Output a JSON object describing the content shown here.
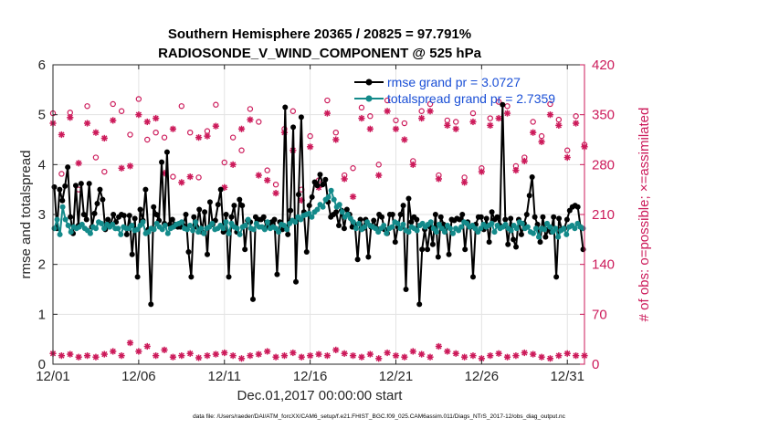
{
  "chart_data": {
    "type": "line",
    "title_line1": "Southern Hemisphere 20365 / 20825 = 97.791%",
    "title_line2": "RADIOSONDE_V_WIND_COMPONENT @ 525 hPa",
    "xlabel": "Dec.01,2017 00:00:00 start",
    "ylabel_left": "rmse and totalspread",
    "ylabel_right": "# of obs: o=possible; ×=assimilated",
    "footnote": "data file: /Users/raeder/DAI/ATM_forcXX/CAM6_setup/f.e21.FHIST_BGC.f09_025.CAM6assim.011/Diags_NTrS_2017-12/obs_diag_output.nc",
    "xlim": [
      0,
      31
    ],
    "ylim_left": [
      0,
      6
    ],
    "ylim_right": [
      0,
      420
    ],
    "x_ticks": [
      0,
      5,
      10,
      15,
      20,
      25,
      30
    ],
    "x_tick_labels": [
      "12/01",
      "12/06",
      "12/11",
      "12/16",
      "12/21",
      "12/26",
      "12/31"
    ],
    "y_ticks_left": [
      0,
      1,
      2,
      3,
      4,
      5,
      6
    ],
    "y_tick_labels_left": [
      "0",
      "1",
      "2",
      "3",
      "4",
      "5",
      "6"
    ],
    "y_ticks_right": [
      0,
      70,
      140,
      210,
      280,
      350,
      420
    ],
    "y_tick_labels_right": [
      "0",
      "70",
      "140",
      "210",
      "280",
      "350",
      "420"
    ],
    "grid": true,
    "legend_position": "top-right",
    "colors": {
      "rmse": "#000000",
      "spread": "#138a8a",
      "obs": "#cc1a5a"
    },
    "series": [
      {
        "name": "rmse grand pr = 3.0727",
        "values": [
          3.55,
          2.72,
          3.5,
          3.28,
          3.57,
          3.95,
          2.95,
          2.62,
          3.58,
          2.78,
          3.62,
          3.0,
          2.9,
          3.62,
          2.75,
          3.02,
          3.22,
          3.5,
          3.3,
          2.7,
          2.9,
          2.8,
          3.0,
          2.85,
          2.95,
          3.0,
          2.98,
          2.6,
          2.98,
          2.2,
          2.92,
          1.75,
          3.1,
          2.88,
          3.5,
          2.7,
          1.2,
          3.15,
          3.0,
          2.88,
          4.05,
          2.82,
          4.25,
          2.8,
          2.9,
          2.8,
          2.75,
          2.75,
          2.78,
          3.0,
          2.25,
          1.75,
          2.95,
          2.75,
          3.1,
          2.65,
          3.05,
          2.2,
          3.25,
          2.8,
          2.88,
          3.2,
          3.5,
          2.65,
          3.0,
          1.75,
          2.95,
          3.18,
          2.65,
          3.3,
          3.18,
          2.3,
          2.88,
          2.85,
          1.3,
          2.95,
          2.9,
          2.9,
          2.95,
          2.75,
          2.75,
          2.85,
          2.9,
          1.8,
          2.85,
          2.7,
          5.15,
          2.6,
          3.08,
          4.75,
          1.65,
          3.4,
          4.95,
          3.05,
          2.25,
          3.18,
          3.35,
          3.65,
          3.58,
          3.8,
          3.6,
          3.7,
          3.25,
          2.95,
          3.0,
          3.05,
          2.78,
          3.08,
          2.72,
          3.1,
          3.0,
          2.75,
          2.8,
          2.1,
          2.9,
          2.72,
          2.9,
          2.15,
          2.75,
          2.88,
          2.72,
          3.0,
          2.95,
          2.7,
          2.62,
          3.0,
          3.0,
          2.45,
          2.75,
          3.0,
          3.18,
          1.5,
          3.32,
          2.85,
          2.95,
          2.9,
          1.2,
          2.3,
          2.7,
          2.3,
          2.75,
          2.4,
          3.0,
          2.15,
          2.95,
          2.8,
          2.75,
          2.2,
          2.9,
          2.88,
          2.92,
          2.9,
          3.0,
          2.3,
          2.85,
          2.75,
          1.75,
          2.8,
          2.95,
          2.95,
          2.7,
          2.92,
          2.45,
          3.05,
          2.9,
          2.95,
          2.78,
          5.2,
          2.9,
          2.4,
          2.92,
          2.5,
          2.35,
          2.9,
          2.6,
          2.82,
          3.0,
          3.38,
          3.75,
          2.95,
          2.8,
          2.45,
          2.95,
          2.55,
          2.7,
          2.65,
          2.95,
          1.75,
          2.92,
          2.7,
          2.72,
          2.9,
          3.08,
          3.15,
          3.18,
          3.15,
          2.75,
          2.3
        ]
      },
      {
        "name": "totalspread grand pr = 2.7359",
        "values": [
          2.72,
          2.9,
          2.6,
          3.15,
          2.9,
          2.78,
          2.65,
          2.75,
          2.72,
          2.75,
          2.8,
          2.72,
          2.68,
          2.62,
          2.75,
          2.72,
          2.85,
          2.82,
          2.72,
          2.8,
          2.75,
          2.8,
          2.72,
          2.72,
          2.6,
          2.75,
          2.72,
          2.72,
          2.78,
          2.68,
          2.7,
          2.78,
          2.85,
          2.62,
          2.65,
          2.72,
          2.7,
          2.82,
          2.75,
          2.7,
          2.78,
          2.62,
          2.72,
          2.75,
          2.8,
          2.82,
          2.85,
          2.72,
          2.7,
          2.78,
          2.68,
          2.85,
          2.65,
          2.72,
          2.62,
          2.72,
          2.75,
          2.82,
          2.7,
          2.72,
          2.78,
          2.72,
          2.85,
          2.62,
          2.82,
          2.75,
          2.72,
          2.6,
          2.75,
          2.78,
          2.9,
          2.72,
          2.7,
          2.82,
          2.75,
          2.75,
          2.7,
          2.85,
          2.72,
          2.75,
          2.72,
          2.65,
          2.8,
          2.78,
          2.7,
          2.82,
          2.88,
          2.85,
          2.95,
          2.9,
          2.98,
          3.0,
          3.02,
          2.95,
          3.05,
          3.1,
          3.2,
          3.15,
          3.3,
          3.35,
          3.48,
          3.3,
          3.15,
          3.2,
          3.05,
          2.95,
          3.0,
          2.92,
          2.85,
          2.72,
          2.82,
          2.7,
          2.75,
          2.85,
          2.78,
          2.75,
          2.72,
          2.65,
          2.72,
          2.78,
          2.62,
          2.72,
          2.75,
          2.85,
          2.82,
          2.72,
          2.8,
          2.68,
          2.65,
          2.75,
          2.72,
          2.68,
          2.78,
          2.82,
          2.75,
          2.8,
          2.85,
          2.72,
          2.65,
          2.8,
          2.72,
          2.65,
          2.78,
          2.72,
          2.62,
          2.72,
          2.68,
          2.75,
          2.85,
          2.82,
          2.75,
          2.78,
          2.72,
          2.65,
          2.72,
          2.8,
          2.75,
          2.78,
          2.82,
          2.65,
          2.78,
          2.72,
          2.75,
          2.8,
          2.72,
          2.68,
          2.78,
          2.72,
          2.85,
          2.82,
          2.72,
          2.75,
          2.65,
          2.62,
          2.72,
          2.55,
          2.72,
          2.7,
          2.82,
          2.75,
          2.65,
          2.72,
          2.55,
          2.68,
          2.72,
          2.6,
          2.75,
          2.78,
          2.72,
          2.82,
          2.75,
          2.72
        ]
      }
    ],
    "obs_possible": {
      "x": [
        0,
        0.5,
        1,
        1.5,
        2,
        2.5,
        3,
        3.5,
        4,
        4.5,
        5,
        5.5,
        6,
        6.5,
        7,
        7.5,
        8,
        8.5,
        9,
        9.5,
        10,
        10.5,
        11,
        11.5,
        12,
        12.5,
        13,
        13.5,
        14,
        14.5,
        15,
        15.5,
        16,
        16.5,
        17,
        17.5,
        18,
        18.5,
        19,
        19.5,
        20,
        20.5,
        21,
        21.5,
        22,
        22.5,
        23,
        23.5,
        24,
        24.5,
        25,
        25.5,
        26,
        26.5,
        27,
        27.5,
        28,
        28.5,
        29,
        29.5,
        30,
        30.5,
        31
      ],
      "values": [
        352,
        267,
        353,
        245,
        362,
        290,
        270,
        365,
        355,
        322,
        372,
        315,
        325,
        318,
        263,
        362,
        325,
        262,
        327,
        364,
        283,
        318,
        300,
        358,
        340,
        272,
        252,
        330,
        355,
        245,
        320,
        258,
        370,
        325,
        265,
        275,
        360,
        348,
        280,
        370,
        342,
        338,
        285,
        355,
        365,
        265,
        342,
        340,
        262,
        352,
        275,
        345,
        368,
        362,
        278,
        290,
        340,
        320,
        365,
        343,
        300,
        348,
        308
      ]
    },
    "obs_assimilated": {
      "x": [
        0,
        0.5,
        1,
        1.5,
        2,
        2.5,
        3,
        3.5,
        4,
        4.5,
        5,
        5.5,
        6,
        6.5,
        7,
        7.5,
        8,
        8.5,
        9,
        9.5,
        10,
        10.5,
        11,
        11.5,
        12,
        12.5,
        13,
        13.5,
        14,
        14.5,
        15,
        15.5,
        16,
        16.5,
        17,
        17.5,
        18,
        18.5,
        19,
        19.5,
        20,
        20.5,
        21,
        21.5,
        22,
        22.5,
        23,
        23.5,
        24,
        24.5,
        25,
        25.5,
        26,
        26.5,
        27,
        27.5,
        28,
        28.5,
        29,
        29.5,
        30,
        30.5,
        31
      ],
      "values": [
        338,
        322,
        346,
        282,
        338,
        325,
        317,
        342,
        275,
        278,
        350,
        340,
        345,
        268,
        330,
        255,
        263,
        318,
        320,
        334,
        248,
        280,
        330,
        343,
        265,
        258,
        240,
        325,
        300,
        230,
        305,
        248,
        352,
        315,
        260,
        235,
        345,
        330,
        265,
        355,
        330,
        315,
        280,
        345,
        355,
        260,
        335,
        330,
        255,
        340,
        270,
        335,
        345,
        352,
        272,
        285,
        325,
        312,
        350,
        335,
        290,
        338,
        305
      ]
    },
    "obs_rejected": {
      "x": [
        0,
        0.5,
        1,
        1.5,
        2,
        2.5,
        3,
        3.5,
        4,
        4.5,
        5,
        5.5,
        6,
        6.5,
        7,
        7.5,
        8,
        8.5,
        9,
        9.5,
        10,
        10.5,
        11,
        11.5,
        12,
        12.5,
        13,
        13.5,
        14,
        14.5,
        15,
        15.5,
        16,
        16.5,
        17,
        17.5,
        18,
        18.5,
        19,
        19.5,
        20,
        20.5,
        21,
        21.5,
        22,
        22.5,
        23,
        23.5,
        24,
        24.5,
        25,
        25.5,
        26,
        26.5,
        27,
        27.5,
        28,
        28.5,
        29,
        29.5,
        30,
        30.5,
        31
      ],
      "values": [
        15,
        12,
        14,
        10,
        12,
        10,
        14,
        18,
        12,
        30,
        18,
        25,
        12,
        20,
        10,
        12,
        15,
        9,
        12,
        14,
        16,
        12,
        8,
        12,
        14,
        18,
        10,
        12,
        16,
        10,
        12,
        14,
        12,
        20,
        15,
        12,
        10,
        14,
        8,
        16,
        12,
        10,
        18,
        14,
        10,
        25,
        18,
        15,
        10,
        12,
        8,
        12,
        15,
        10,
        12,
        16,
        14,
        10,
        8,
        12,
        15,
        12,
        12
      ]
    }
  }
}
